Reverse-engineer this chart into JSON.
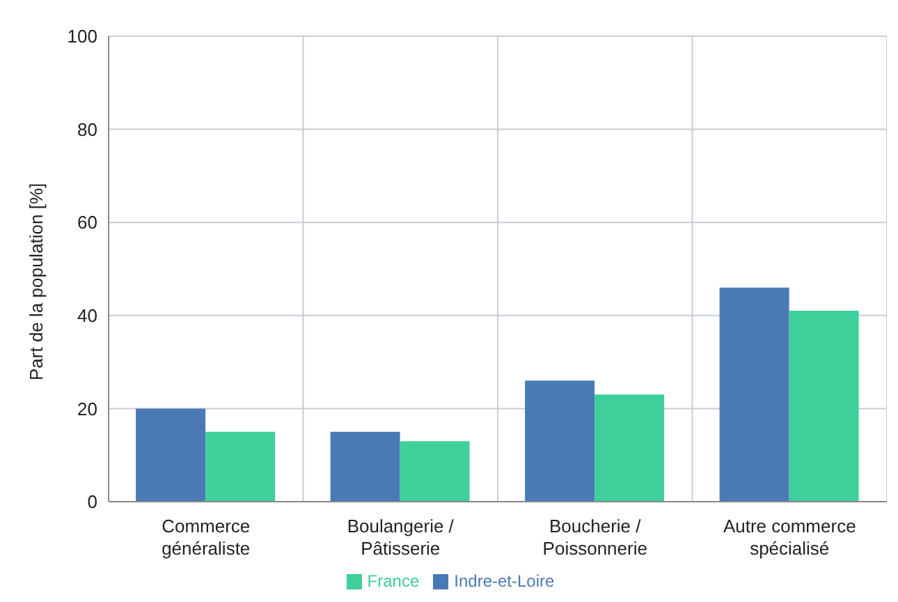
{
  "chart_data": {
    "type": "bar",
    "ylabel": "Part de la population [%]",
    "categories": [
      "Commerce généraliste",
      "Boulangerie / Pâtisserie",
      "Boucherie / Poissonnerie",
      "Autre commerce spécialisé"
    ],
    "series": [
      {
        "name": "Indre-et-Loire",
        "color": "#4a7ab5",
        "values": [
          20,
          15,
          26,
          46
        ]
      },
      {
        "name": "France",
        "color": "#3ecf9a",
        "values": [
          15,
          13,
          23,
          41
        ]
      }
    ],
    "ylim": [
      0,
      100
    ],
    "yticks": [
      0,
      20,
      40,
      60,
      80,
      100
    ],
    "grid": true,
    "legend": "bottom"
  }
}
